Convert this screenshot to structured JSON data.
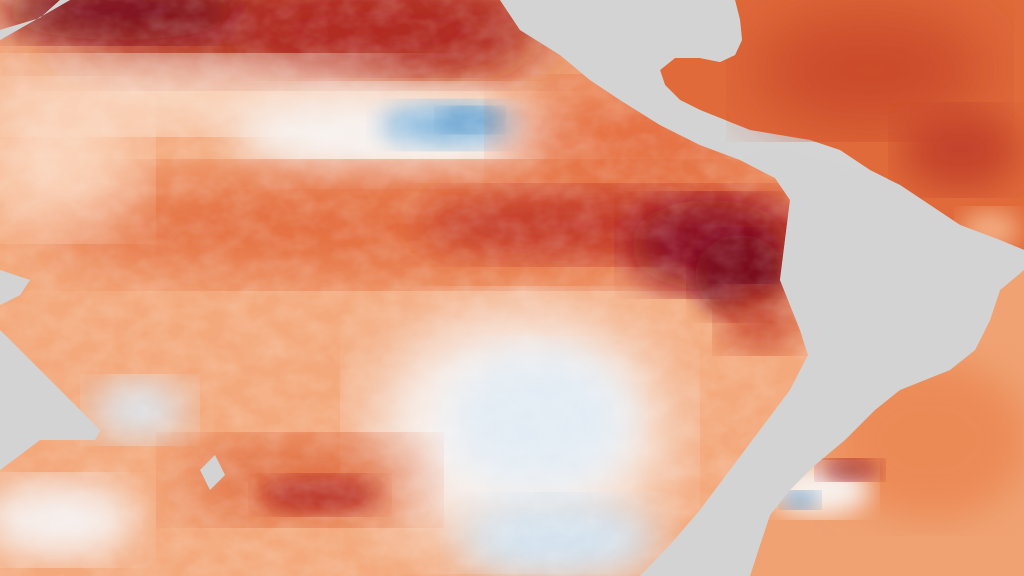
{
  "map": {
    "kind": "sea-surface-temperature-anomaly",
    "region": "Pacific Ocean",
    "colors": {
      "land": "#d3d3d3",
      "anomaly_very_warm": "#7a0a1e",
      "anomaly_warm": "#c8442a",
      "anomaly_mild_warm": "#ef8d57",
      "anomaly_slight_warm": "#fbd2b3",
      "anomaly_neutral": "#fbf2ea",
      "anomaly_slight_cool": "#d6e6f2",
      "anomaly_cool": "#6aa6d2"
    },
    "features": [
      "north-pacific-warm-band",
      "subtropical-cool-patch",
      "equatorial-warm-tongue",
      "south-pacific-cool-patch",
      "north-america-landmass",
      "south-america-landmass",
      "australia-landmass",
      "caribbean-warm-water"
    ]
  }
}
